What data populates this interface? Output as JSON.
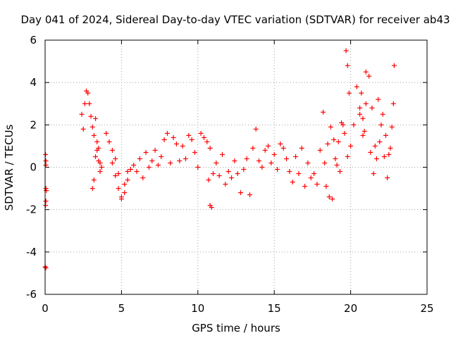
{
  "chart_data": {
    "type": "scatter",
    "title": "Day 041 of 2024, Sidereal Day-to-day VTEC variation (SDTVAR) for receiver ab43",
    "xlabel": "GPS time / hours",
    "ylabel": "SDTVAR / TECUs",
    "xlim": [
      0,
      25
    ],
    "ylim": [
      -6,
      6
    ],
    "xticks": [
      0,
      5,
      10,
      15,
      20,
      25
    ],
    "yticks": [
      -6,
      -4,
      -2,
      0,
      2,
      4,
      6
    ],
    "xtick_labels": [
      "0",
      "5",
      "10",
      "15",
      "20",
      "25"
    ],
    "ytick_labels": [
      "-6",
      "-4",
      "-2",
      "0",
      "2",
      "4",
      "6"
    ],
    "grid": true,
    "marker": "plus",
    "series": [
      {
        "name": "SDTVAR",
        "color": "#ff0000",
        "x": [
          0.0,
          0.03,
          0.05,
          0.05,
          0.08,
          0.05,
          0.03,
          0.05,
          0.05,
          2.4,
          2.5,
          2.6,
          2.7,
          2.8,
          2.9,
          3.0,
          3.1,
          3.2,
          3.3,
          3.4,
          3.5,
          3.6,
          3.7,
          3.1,
          3.2,
          3.3,
          3.4,
          3.5,
          3.6,
          4.0,
          4.2,
          4.4,
          4.6,
          4.8,
          5.0,
          5.2,
          5.4,
          5.6,
          5.8,
          6.0,
          6.2,
          6.4,
          6.6,
          6.8,
          7.0,
          7.2,
          7.4,
          7.6,
          7.8,
          8.0,
          4.4,
          4.6,
          4.8,
          5.0,
          5.2,
          5.4,
          8.2,
          8.4,
          8.6,
          8.8,
          9.0,
          9.2,
          9.4,
          9.6,
          9.8,
          10.0,
          10.2,
          10.4,
          10.6,
          10.8,
          10.7,
          10.8,
          10.9,
          11.0,
          11.2,
          11.4,
          11.6,
          11.8,
          12.0,
          12.2,
          12.4,
          12.6,
          12.8,
          13.0,
          13.2,
          13.4,
          13.6,
          13.8,
          14.0,
          14.2,
          14.4,
          14.6,
          14.8,
          15.0,
          15.2,
          15.4,
          15.6,
          15.8,
          16.0,
          16.2,
          16.4,
          16.6,
          16.8,
          17.0,
          17.2,
          17.4,
          17.6,
          17.8,
          18.0,
          18.2,
          18.4,
          18.6,
          18.8,
          19.0,
          19.2,
          19.4,
          19.6,
          19.8,
          19.7,
          19.8,
          19.9,
          20.0,
          20.2,
          20.4,
          20.6,
          20.8,
          21.0,
          21.2,
          21.4,
          21.6,
          21.8,
          22.0,
          22.2,
          22.4,
          22.6,
          22.8,
          22.85,
          18.3,
          18.5,
          18.7,
          18.9,
          19.1,
          19.3,
          19.5,
          20.6,
          20.7,
          20.8,
          20.9,
          21.0,
          21.3,
          21.5,
          21.7,
          21.9,
          22.1,
          22.3,
          22.5,
          22.7
        ],
        "y": [
          -4.7,
          0.6,
          0.3,
          -1.0,
          -1.1,
          -1.6,
          -1.8,
          -4.75,
          0.1,
          2.5,
          1.8,
          3.0,
          3.6,
          3.5,
          3.0,
          2.4,
          1.9,
          1.5,
          2.3,
          0.8,
          0.3,
          -0.2,
          0.0,
          -1.0,
          -0.6,
          0.5,
          1.2,
          0.9,
          0.2,
          1.6,
          1.2,
          0.8,
          0.4,
          -0.3,
          -1.5,
          -1.2,
          -0.6,
          -0.1,
          0.1,
          -0.2,
          0.4,
          -0.5,
          0.7,
          0.0,
          0.3,
          0.8,
          0.1,
          0.5,
          1.3,
          1.6,
          0.2,
          -0.4,
          -1.0,
          -1.4,
          -0.8,
          -0.2,
          0.2,
          1.4,
          1.1,
          0.3,
          1.0,
          0.4,
          1.5,
          1.3,
          0.7,
          0.0,
          1.6,
          1.4,
          1.2,
          0.9,
          -0.6,
          -1.8,
          -1.9,
          -0.3,
          0.2,
          -0.4,
          0.6,
          -0.8,
          -0.2,
          -0.5,
          0.3,
          -0.3,
          -1.2,
          -0.1,
          0.4,
          -1.3,
          0.9,
          1.8,
          0.3,
          0.0,
          0.8,
          1.0,
          0.2,
          0.6,
          -0.1,
          1.1,
          0.9,
          0.4,
          -0.2,
          -0.7,
          0.5,
          -0.3,
          0.9,
          -0.9,
          0.2,
          -0.5,
          -0.3,
          -0.8,
          0.8,
          2.6,
          -0.9,
          -1.4,
          -1.5,
          0.4,
          1.2,
          2.1,
          1.6,
          0.5,
          5.5,
          4.8,
          3.5,
          1.0,
          2.0,
          3.8,
          2.5,
          1.5,
          4.5,
          4.3,
          2.8,
          1.0,
          3.2,
          2.0,
          0.5,
          -0.5,
          0.9,
          3.0,
          4.8,
          0.2,
          1.1,
          1.9,
          1.3,
          0.1,
          -0.2,
          2.0,
          2.8,
          3.5,
          2.3,
          1.7,
          3.0,
          0.7,
          -0.3,
          0.4,
          1.2,
          2.5,
          1.5,
          0.6,
          1.9
        ]
      }
    ]
  }
}
